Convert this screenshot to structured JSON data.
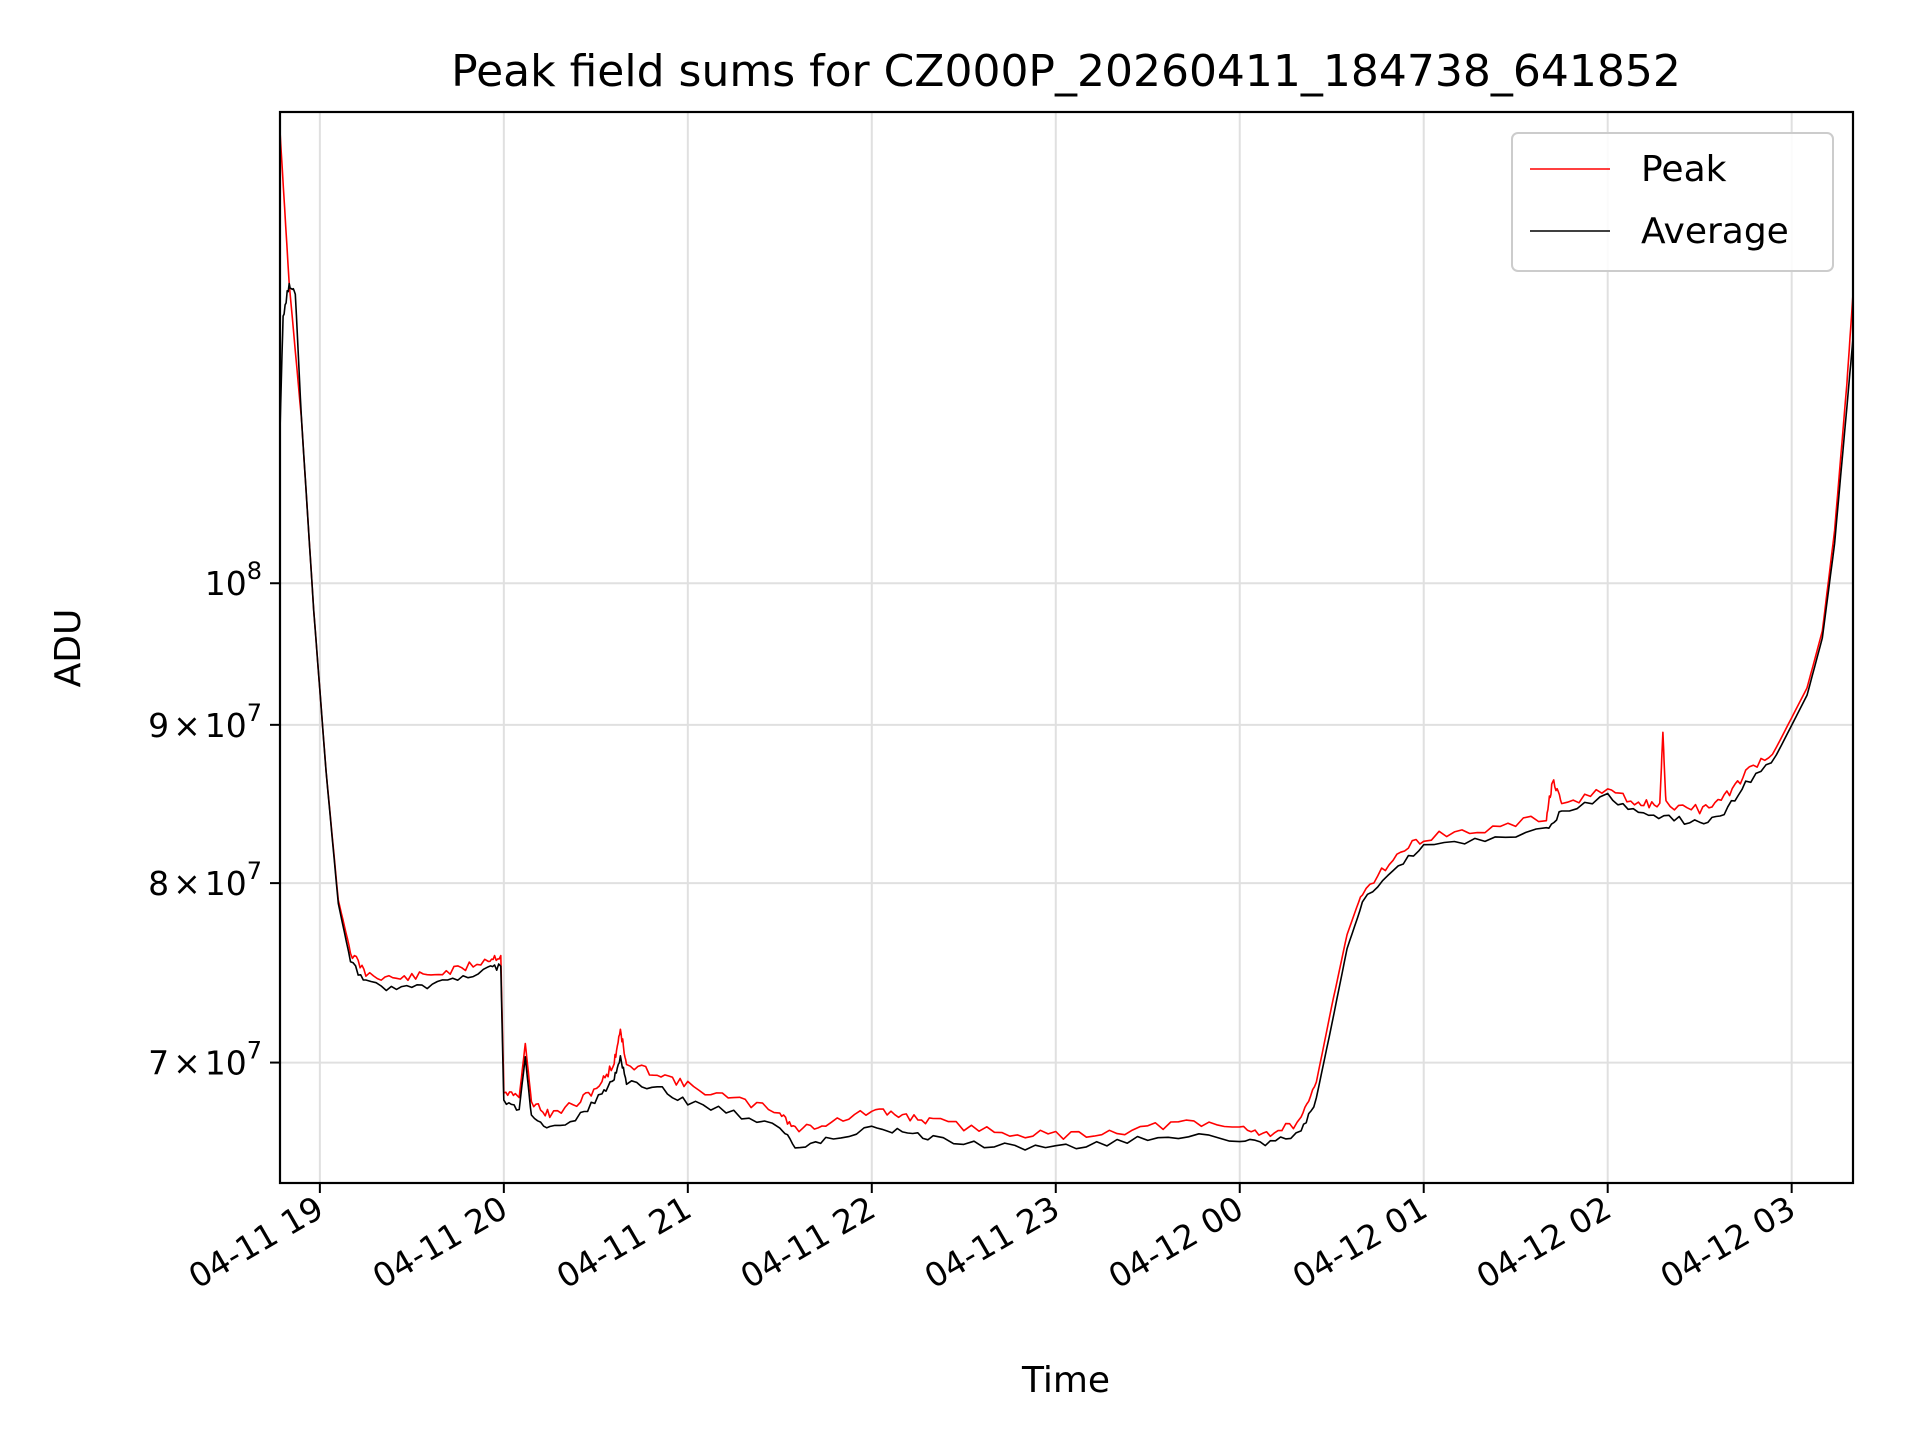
{
  "chart_data": {
    "type": "line",
    "title": "Peak field sums for CZ000P_20260411_184738_641852",
    "xlabel": "Time",
    "ylabel": "ADU",
    "yscale": "log",
    "grid": true,
    "legend_position": "top-right",
    "xlim": [
      "2026-04-11 18:47",
      "2026-04-12 03:20"
    ],
    "ylim": [
      64000000,
      142000000
    ],
    "x_ticks": [
      {
        "value": "2026-04-11 19:00",
        "label": "04-11 19"
      },
      {
        "value": "2026-04-11 20:00",
        "label": "04-11 20"
      },
      {
        "value": "2026-04-11 21:00",
        "label": "04-11 21"
      },
      {
        "value": "2026-04-11 22:00",
        "label": "04-11 22"
      },
      {
        "value": "2026-04-11 23:00",
        "label": "04-11 23"
      },
      {
        "value": "2026-04-12 00:00",
        "label": "04-12 00"
      },
      {
        "value": "2026-04-12 01:00",
        "label": "04-12 01"
      },
      {
        "value": "2026-04-12 02:00",
        "label": "04-12 02"
      },
      {
        "value": "2026-04-12 03:00",
        "label": "04-12 03"
      }
    ],
    "y_ticks": [
      {
        "value": 70000000,
        "mant": "7",
        "times": "×",
        "base": "10",
        "exp": "7"
      },
      {
        "value": 80000000,
        "mant": "8",
        "times": "×",
        "base": "10",
        "exp": "7"
      },
      {
        "value": 90000000,
        "mant": "9",
        "times": "×",
        "base": "10",
        "exp": "7"
      },
      {
        "value": 100000000,
        "mant": "",
        "times": "",
        "base": "10",
        "exp": "8"
      }
    ],
    "series": [
      {
        "name": "Peak",
        "color": "#ff0000",
        "points": [
          [
            "2026-04-11 18:47",
            140000000
          ],
          [
            "2026-04-11 18:50",
            125000000
          ],
          [
            "2026-04-11 18:54",
            113000000
          ],
          [
            "2026-04-11 18:58",
            98000000
          ],
          [
            "2026-04-11 19:02",
            87000000
          ],
          [
            "2026-04-11 19:06",
            79000000
          ],
          [
            "2026-04-11 19:10",
            76000000
          ],
          [
            "2026-04-11 19:15",
            74800000
          ],
          [
            "2026-04-11 19:25",
            74500000
          ],
          [
            "2026-04-11 19:35",
            74700000
          ],
          [
            "2026-04-11 19:45",
            75000000
          ],
          [
            "2026-04-11 19:55",
            75600000
          ],
          [
            "2026-04-11 19:59",
            75800000
          ],
          [
            "2026-04-11 20:00",
            68500000
          ],
          [
            "2026-04-11 20:05",
            68200000
          ],
          [
            "2026-04-11 20:07",
            71000000
          ],
          [
            "2026-04-11 20:09",
            68000000
          ],
          [
            "2026-04-11 20:15",
            67300000
          ],
          [
            "2026-04-11 20:25",
            68000000
          ],
          [
            "2026-04-11 20:32",
            69000000
          ],
          [
            "2026-04-11 20:36",
            70000000
          ],
          [
            "2026-04-11 20:38",
            71800000
          ],
          [
            "2026-04-11 20:40",
            69800000
          ],
          [
            "2026-04-11 20:50",
            69500000
          ],
          [
            "2026-04-11 21:00",
            68800000
          ],
          [
            "2026-04-11 21:15",
            68100000
          ],
          [
            "2026-04-11 21:30",
            67500000
          ],
          [
            "2026-04-11 21:35",
            66600000
          ],
          [
            "2026-04-11 21:45",
            66900000
          ],
          [
            "2026-04-11 22:00",
            67500000
          ],
          [
            "2026-04-11 22:10",
            67300000
          ],
          [
            "2026-04-11 22:20",
            67000000
          ],
          [
            "2026-04-11 22:40",
            66500000
          ],
          [
            "2026-04-11 23:00",
            66300000
          ],
          [
            "2026-04-11 23:20",
            66500000
          ],
          [
            "2026-04-11 23:40",
            66900000
          ],
          [
            "2026-04-12 00:00",
            66700000
          ],
          [
            "2026-04-12 00:10",
            66400000
          ],
          [
            "2026-04-12 00:20",
            67000000
          ],
          [
            "2026-04-12 00:25",
            69000000
          ],
          [
            "2026-04-12 00:30",
            73000000
          ],
          [
            "2026-04-12 00:35",
            77000000
          ],
          [
            "2026-04-12 00:40",
            79500000
          ],
          [
            "2026-04-12 00:50",
            81500000
          ],
          [
            "2026-04-12 01:00",
            82800000
          ],
          [
            "2026-04-12 01:20",
            83200000
          ],
          [
            "2026-04-12 01:40",
            84000000
          ],
          [
            "2026-04-12 01:42",
            86300000
          ],
          [
            "2026-04-12 01:45",
            84800000
          ],
          [
            "2026-04-12 02:00",
            85800000
          ],
          [
            "2026-04-12 02:10",
            84800000
          ],
          [
            "2026-04-12 02:17",
            84900000
          ],
          [
            "2026-04-12 02:18",
            89500000
          ],
          [
            "2026-04-12 02:19",
            84800000
          ],
          [
            "2026-04-12 02:30",
            84500000
          ],
          [
            "2026-04-12 02:38",
            85200000
          ],
          [
            "2026-04-12 02:45",
            86800000
          ],
          [
            "2026-04-12 02:55",
            88500000
          ],
          [
            "2026-04-12 03:05",
            92500000
          ],
          [
            "2026-04-12 03:10",
            96500000
          ],
          [
            "2026-04-12 03:14",
            104000000
          ],
          [
            "2026-04-12 03:18",
            116000000
          ],
          [
            "2026-04-12 03:20",
            124000000
          ]
        ]
      },
      {
        "name": "Average",
        "color": "#000000",
        "points": [
          [
            "2026-04-11 18:47",
            112000000
          ],
          [
            "2026-04-11 18:48",
            122000000
          ],
          [
            "2026-04-11 18:50",
            125000000
          ],
          [
            "2026-04-11 18:52",
            124000000
          ],
          [
            "2026-04-11 18:54",
            113000000
          ],
          [
            "2026-04-11 18:58",
            98000000
          ],
          [
            "2026-04-11 19:02",
            87000000
          ],
          [
            "2026-04-11 19:06",
            78800000
          ],
          [
            "2026-04-11 19:10",
            75500000
          ],
          [
            "2026-04-11 19:15",
            74300000
          ],
          [
            "2026-04-11 19:25",
            73900000
          ],
          [
            "2026-04-11 19:35",
            74100000
          ],
          [
            "2026-04-11 19:45",
            74500000
          ],
          [
            "2026-04-11 19:55",
            75100000
          ],
          [
            "2026-04-11 19:59",
            75200000
          ],
          [
            "2026-04-11 20:00",
            67900000
          ],
          [
            "2026-04-11 20:05",
            67600000
          ],
          [
            "2026-04-11 20:07",
            70300000
          ],
          [
            "2026-04-11 20:09",
            67200000
          ],
          [
            "2026-04-11 20:15",
            66600000
          ],
          [
            "2026-04-11 20:25",
            67300000
          ],
          [
            "2026-04-11 20:32",
            68400000
          ],
          [
            "2026-04-11 20:36",
            69200000
          ],
          [
            "2026-04-11 20:38",
            70200000
          ],
          [
            "2026-04-11 20:40",
            69000000
          ],
          [
            "2026-04-11 20:50",
            68700000
          ],
          [
            "2026-04-11 21:00",
            68000000
          ],
          [
            "2026-04-11 21:15",
            67400000
          ],
          [
            "2026-04-11 21:30",
            66800000
          ],
          [
            "2026-04-11 21:35",
            65800000
          ],
          [
            "2026-04-11 21:45",
            66100000
          ],
          [
            "2026-04-11 22:00",
            66700000
          ],
          [
            "2026-04-11 22:10",
            66500000
          ],
          [
            "2026-04-11 22:20",
            66200000
          ],
          [
            "2026-04-11 22:40",
            65800000
          ],
          [
            "2026-04-11 23:00",
            65700000
          ],
          [
            "2026-04-11 23:20",
            66000000
          ],
          [
            "2026-04-11 23:40",
            66300000
          ],
          [
            "2026-04-12 00:00",
            66100000
          ],
          [
            "2026-04-12 00:10",
            65900000
          ],
          [
            "2026-04-12 00:20",
            66400000
          ],
          [
            "2026-04-12 00:25",
            68200000
          ],
          [
            "2026-04-12 00:30",
            72000000
          ],
          [
            "2026-04-12 00:35",
            76200000
          ],
          [
            "2026-04-12 00:40",
            78800000
          ],
          [
            "2026-04-12 00:50",
            80900000
          ],
          [
            "2026-04-12 01:00",
            82200000
          ],
          [
            "2026-04-12 01:20",
            82600000
          ],
          [
            "2026-04-12 01:40",
            83400000
          ],
          [
            "2026-04-12 01:45",
            84300000
          ],
          [
            "2026-04-12 02:00",
            85300000
          ],
          [
            "2026-04-12 02:10",
            84200000
          ],
          [
            "2026-04-12 02:20",
            84000000
          ],
          [
            "2026-04-12 02:30",
            83600000
          ],
          [
            "2026-04-12 02:38",
            84300000
          ],
          [
            "2026-04-12 02:45",
            86100000
          ],
          [
            "2026-04-12 02:55",
            88000000
          ],
          [
            "2026-04-12 03:05",
            92000000
          ],
          [
            "2026-04-12 03:10",
            96000000
          ],
          [
            "2026-04-12 03:14",
            103000000
          ],
          [
            "2026-04-12 03:18",
            114000000
          ],
          [
            "2026-04-12 03:20",
            120000000
          ]
        ]
      }
    ]
  }
}
